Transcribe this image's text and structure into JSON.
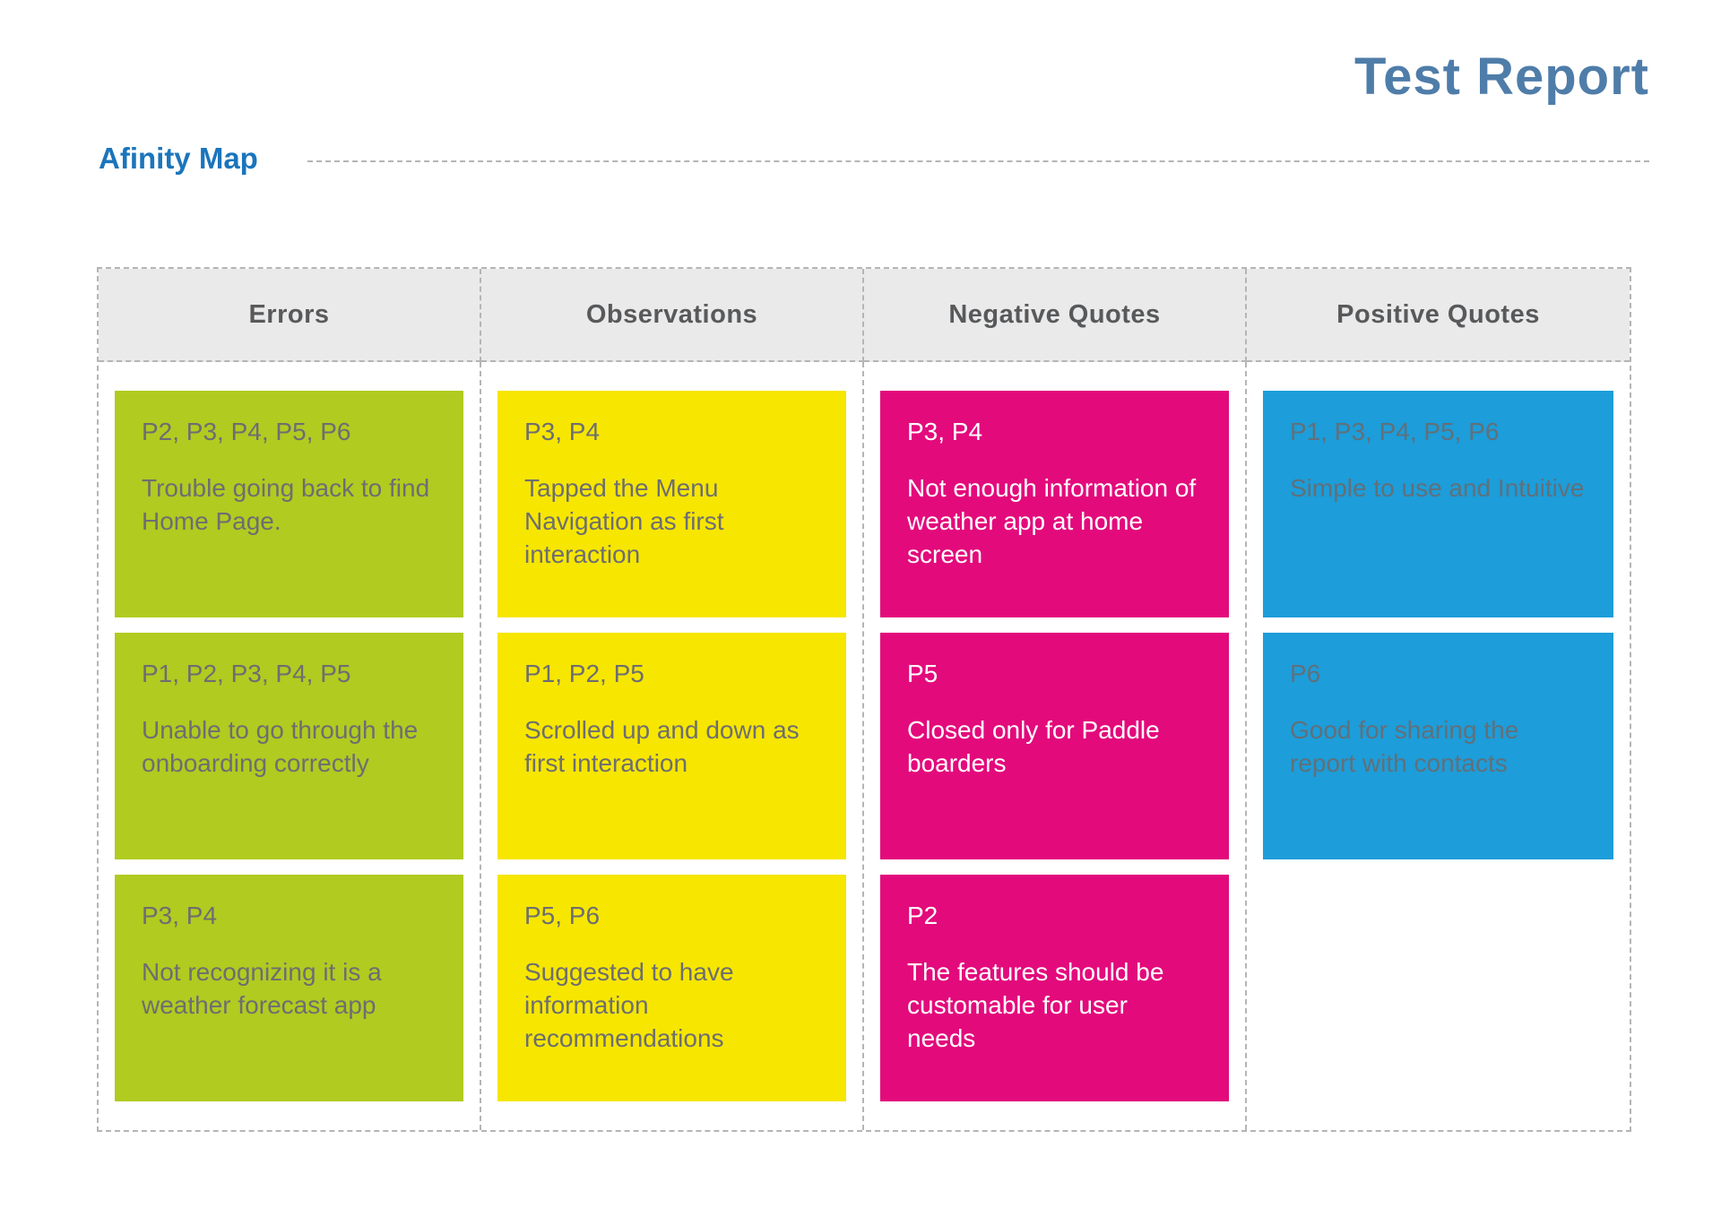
{
  "page": {
    "title": "Test Report",
    "section_title": "Afinity Map"
  },
  "palette": {
    "title_color": "#4f7da9",
    "section_title_color": "#1b75bc",
    "header_bg": "#eaeaea",
    "header_text": "#58595b",
    "dashed_border": "#b5b5b5",
    "errors_card_bg": "#b1cb20",
    "observations_card_bg": "#f7e600",
    "negative_card_bg": "#e30a7c",
    "positive_card_bg": "#1d9dd9",
    "card_text": "#6d6e71",
    "negative_card_text": "#ffffff"
  },
  "board": {
    "columns": [
      {
        "header": "Errors",
        "cards": [
          {
            "participants": "P2, P3, P4, P5, P6",
            "text": "Trouble going back to find Home Page."
          },
          {
            "participants": "P1, P2, P3, P4, P5",
            "text": "Unable to go through the onboarding correctly"
          },
          {
            "participants": "P3, P4",
            "text": "Not recognizing it is a weather forecast app"
          }
        ]
      },
      {
        "header": "Observations",
        "cards": [
          {
            "participants": "P3, P4",
            "text": "Tapped the Menu Navigation as first interaction"
          },
          {
            "participants": "P1, P2, P5",
            "text": "Scrolled up and down as first interaction"
          },
          {
            "participants": "P5, P6",
            "text": "Suggested to have information recommendations"
          }
        ]
      },
      {
        "header": "Negative Quotes",
        "cards": [
          {
            "participants": "P3, P4",
            "text": "Not enough information of weather app at home screen"
          },
          {
            "participants": "P5",
            "text": "Closed only for Paddle boarders"
          },
          {
            "participants": "P2",
            "text": "The features should be customable for user needs"
          }
        ]
      },
      {
        "header": "Positive Quotes",
        "cards": [
          {
            "participants": "P1, P3, P4, P5, P6",
            "text": "Simple to use and Intuitive"
          },
          {
            "participants": "P6",
            "text": "Good for sharing the report with contacts"
          }
        ]
      }
    ]
  }
}
